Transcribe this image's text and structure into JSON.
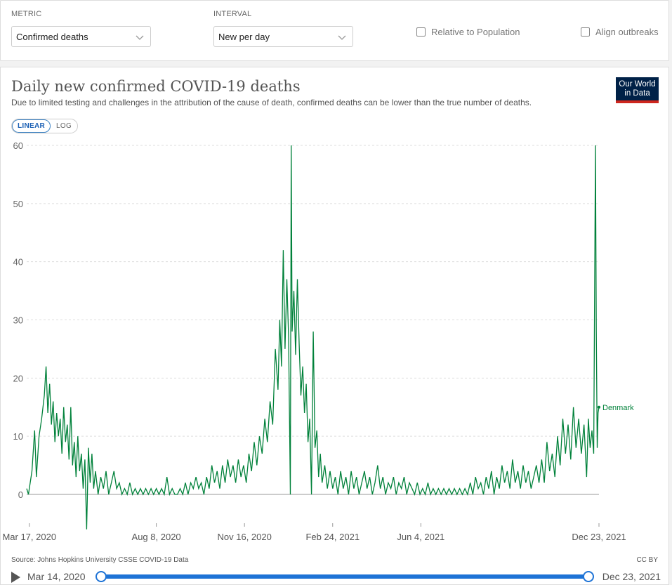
{
  "controls": {
    "metric_label": "METRIC",
    "metric_value": "Confirmed deaths",
    "interval_label": "INTERVAL",
    "interval_value": "New per day",
    "relative_label": "Relative to Population",
    "align_label": "Align outbreaks"
  },
  "header": {
    "title": "Daily new confirmed COVID-19 deaths",
    "subtitle": "Due to limited testing and challenges in the attribution of the cause of death, confirmed deaths can be lower than the true number of deaths.",
    "logo_line1": "Our World",
    "logo_line2": "in Data"
  },
  "scale": {
    "linear": "LINEAR",
    "log": "LOG",
    "active": "linear"
  },
  "footer": {
    "source": "Source: Johns Hopkins University CSSE COVID-19 Data",
    "license": "CC BY"
  },
  "timeline": {
    "start": "Mar 14, 2020",
    "end": "Dec 23, 2021"
  },
  "colors": {
    "series": "#00813a",
    "accent": "#1e73d6",
    "logo_bg": "#002147",
    "logo_bar": "#ce261e"
  },
  "chart_data": {
    "type": "line",
    "title": "Daily new confirmed COVID-19 deaths",
    "ylim": [
      0,
      60
    ],
    "yticks": [
      0,
      10,
      20,
      30,
      40,
      50,
      60
    ],
    "x_range": [
      "2020-03-14",
      "2021-12-23"
    ],
    "x_ticks": [
      {
        "date": "2020-03-17",
        "label": "Mar 17, 2020"
      },
      {
        "date": "2020-08-08",
        "label": "Aug 8, 2020"
      },
      {
        "date": "2020-11-16",
        "label": "Nov 16, 2020"
      },
      {
        "date": "2021-02-24",
        "label": "Feb 24, 2021"
      },
      {
        "date": "2021-06-04",
        "label": "Jun 4, 2021"
      },
      {
        "date": "2021-12-23",
        "label": "Dec 23, 2021"
      }
    ],
    "grid": true,
    "series": [
      {
        "name": "Denmark",
        "color": "#00813a",
        "points": [
          [
            "2020-03-14",
            1
          ],
          [
            "2020-03-16",
            0
          ],
          [
            "2020-03-20",
            4
          ],
          [
            "2020-03-23",
            11
          ],
          [
            "2020-03-25",
            3
          ],
          [
            "2020-03-28",
            10
          ],
          [
            "2020-03-31",
            13
          ],
          [
            "2020-04-03",
            17
          ],
          [
            "2020-04-05",
            22
          ],
          [
            "2020-04-07",
            14
          ],
          [
            "2020-04-09",
            19
          ],
          [
            "2020-04-11",
            12
          ],
          [
            "2020-04-13",
            16
          ],
          [
            "2020-04-15",
            9
          ],
          [
            "2020-04-17",
            14
          ],
          [
            "2020-04-19",
            10
          ],
          [
            "2020-04-21",
            13
          ],
          [
            "2020-04-23",
            7
          ],
          [
            "2020-04-25",
            15
          ],
          [
            "2020-04-27",
            9
          ],
          [
            "2020-04-29",
            12
          ],
          [
            "2020-05-01",
            6
          ],
          [
            "2020-05-03",
            15
          ],
          [
            "2020-05-05",
            5
          ],
          [
            "2020-05-07",
            9
          ],
          [
            "2020-05-09",
            3
          ],
          [
            "2020-05-11",
            10
          ],
          [
            "2020-05-13",
            4
          ],
          [
            "2020-05-15",
            7
          ],
          [
            "2020-05-17",
            1
          ],
          [
            "2020-05-19",
            6
          ],
          [
            "2020-05-21",
            -6
          ],
          [
            "2020-05-23",
            8
          ],
          [
            "2020-05-25",
            2
          ],
          [
            "2020-05-27",
            7
          ],
          [
            "2020-05-29",
            1
          ],
          [
            "2020-05-31",
            4
          ],
          [
            "2020-06-03",
            0
          ],
          [
            "2020-06-06",
            3
          ],
          [
            "2020-06-09",
            1
          ],
          [
            "2020-06-12",
            4
          ],
          [
            "2020-06-15",
            0
          ],
          [
            "2020-06-18",
            2
          ],
          [
            "2020-06-21",
            4
          ],
          [
            "2020-06-24",
            1
          ],
          [
            "2020-06-27",
            2
          ],
          [
            "2020-06-30",
            0
          ],
          [
            "2020-07-03",
            1
          ],
          [
            "2020-07-06",
            0
          ],
          [
            "2020-07-09",
            2
          ],
          [
            "2020-07-12",
            0
          ],
          [
            "2020-07-15",
            1
          ],
          [
            "2020-07-18",
            0
          ],
          [
            "2020-07-21",
            1
          ],
          [
            "2020-07-24",
            0
          ],
          [
            "2020-07-27",
            1
          ],
          [
            "2020-07-30",
            0
          ],
          [
            "2020-08-02",
            1
          ],
          [
            "2020-08-05",
            0
          ],
          [
            "2020-08-08",
            1
          ],
          [
            "2020-08-11",
            0
          ],
          [
            "2020-08-14",
            1
          ],
          [
            "2020-08-17",
            0
          ],
          [
            "2020-08-20",
            3
          ],
          [
            "2020-08-23",
            0
          ],
          [
            "2020-08-26",
            1
          ],
          [
            "2020-08-29",
            0
          ],
          [
            "2020-09-01",
            0
          ],
          [
            "2020-09-04",
            1
          ],
          [
            "2020-09-07",
            0
          ],
          [
            "2020-09-10",
            2
          ],
          [
            "2020-09-13",
            0
          ],
          [
            "2020-09-16",
            2
          ],
          [
            "2020-09-19",
            1
          ],
          [
            "2020-09-22",
            3
          ],
          [
            "2020-09-25",
            1
          ],
          [
            "2020-09-28",
            2
          ],
          [
            "2020-10-01",
            0
          ],
          [
            "2020-10-04",
            3
          ],
          [
            "2020-10-07",
            1
          ],
          [
            "2020-10-10",
            5
          ],
          [
            "2020-10-13",
            2
          ],
          [
            "2020-10-16",
            4
          ],
          [
            "2020-10-19",
            1
          ],
          [
            "2020-10-22",
            5
          ],
          [
            "2020-10-25",
            2
          ],
          [
            "2020-10-28",
            6
          ],
          [
            "2020-10-31",
            3
          ],
          [
            "2020-11-03",
            5
          ],
          [
            "2020-11-06",
            2
          ],
          [
            "2020-11-09",
            6
          ],
          [
            "2020-11-12",
            3
          ],
          [
            "2020-11-15",
            5
          ],
          [
            "2020-11-18",
            2
          ],
          [
            "2020-11-21",
            7
          ],
          [
            "2020-11-24",
            4
          ],
          [
            "2020-11-27",
            9
          ],
          [
            "2020-11-30",
            5
          ],
          [
            "2020-12-03",
            10
          ],
          [
            "2020-12-06",
            7
          ],
          [
            "2020-12-09",
            13
          ],
          [
            "2020-12-12",
            9
          ],
          [
            "2020-12-15",
            16
          ],
          [
            "2020-12-18",
            12
          ],
          [
            "2020-12-21",
            25
          ],
          [
            "2020-12-24",
            18
          ],
          [
            "2020-12-26",
            30
          ],
          [
            "2020-12-28",
            22
          ],
          [
            "2020-12-30",
            42
          ],
          [
            "2021-01-01",
            25
          ],
          [
            "2021-01-03",
            37
          ],
          [
            "2021-01-05",
            27
          ],
          [
            "2021-01-07",
            0
          ],
          [
            "2021-01-08",
            60
          ],
          [
            "2021-01-09",
            28
          ],
          [
            "2021-01-11",
            35
          ],
          [
            "2021-01-13",
            24
          ],
          [
            "2021-01-15",
            37
          ],
          [
            "2021-01-17",
            26
          ],
          [
            "2021-01-19",
            17
          ],
          [
            "2021-01-21",
            22
          ],
          [
            "2021-01-23",
            14
          ],
          [
            "2021-01-25",
            19
          ],
          [
            "2021-01-27",
            9
          ],
          [
            "2021-01-29",
            13
          ],
          [
            "2021-01-31",
            0
          ],
          [
            "2021-02-02",
            28
          ],
          [
            "2021-02-04",
            8
          ],
          [
            "2021-02-06",
            11
          ],
          [
            "2021-02-08",
            3
          ],
          [
            "2021-02-10",
            7
          ],
          [
            "2021-02-12",
            2
          ],
          [
            "2021-02-15",
            5
          ],
          [
            "2021-02-18",
            1
          ],
          [
            "2021-02-21",
            4
          ],
          [
            "2021-02-24",
            1
          ],
          [
            "2021-02-27",
            3
          ],
          [
            "2021-03-02",
            0
          ],
          [
            "2021-03-05",
            4
          ],
          [
            "2021-03-08",
            1
          ],
          [
            "2021-03-11",
            3
          ],
          [
            "2021-03-14",
            0
          ],
          [
            "2021-03-17",
            4
          ],
          [
            "2021-03-20",
            1
          ],
          [
            "2021-03-23",
            3
          ],
          [
            "2021-03-26",
            0
          ],
          [
            "2021-03-29",
            2
          ],
          [
            "2021-04-01",
            4
          ],
          [
            "2021-04-04",
            1
          ],
          [
            "2021-04-07",
            3
          ],
          [
            "2021-04-10",
            0
          ],
          [
            "2021-04-13",
            2
          ],
          [
            "2021-04-16",
            5
          ],
          [
            "2021-04-19",
            1
          ],
          [
            "2021-04-22",
            3
          ],
          [
            "2021-04-25",
            0
          ],
          [
            "2021-04-28",
            2
          ],
          [
            "2021-05-01",
            1
          ],
          [
            "2021-05-04",
            3
          ],
          [
            "2021-05-07",
            0
          ],
          [
            "2021-05-10",
            2
          ],
          [
            "2021-05-13",
            1
          ],
          [
            "2021-05-16",
            3
          ],
          [
            "2021-05-19",
            0
          ],
          [
            "2021-05-22",
            2
          ],
          [
            "2021-05-25",
            1
          ],
          [
            "2021-05-28",
            0
          ],
          [
            "2021-05-31",
            2
          ],
          [
            "2021-06-03",
            0
          ],
          [
            "2021-06-06",
            1
          ],
          [
            "2021-06-09",
            0
          ],
          [
            "2021-06-12",
            2
          ],
          [
            "2021-06-15",
            0
          ],
          [
            "2021-06-18",
            1
          ],
          [
            "2021-06-21",
            0
          ],
          [
            "2021-06-24",
            1
          ],
          [
            "2021-06-27",
            0
          ],
          [
            "2021-06-30",
            1
          ],
          [
            "2021-07-03",
            0
          ],
          [
            "2021-07-06",
            1
          ],
          [
            "2021-07-09",
            0
          ],
          [
            "2021-07-12",
            1
          ],
          [
            "2021-07-15",
            0
          ],
          [
            "2021-07-18",
            1
          ],
          [
            "2021-07-21",
            0
          ],
          [
            "2021-07-24",
            1
          ],
          [
            "2021-07-27",
            0
          ],
          [
            "2021-07-30",
            2
          ],
          [
            "2021-08-02",
            0
          ],
          [
            "2021-08-05",
            3
          ],
          [
            "2021-08-08",
            1
          ],
          [
            "2021-08-11",
            2
          ],
          [
            "2021-08-14",
            0
          ],
          [
            "2021-08-17",
            3
          ],
          [
            "2021-08-20",
            1
          ],
          [
            "2021-08-23",
            4
          ],
          [
            "2021-08-26",
            0
          ],
          [
            "2021-08-29",
            3
          ],
          [
            "2021-09-01",
            1
          ],
          [
            "2021-09-04",
            5
          ],
          [
            "2021-09-07",
            2
          ],
          [
            "2021-09-10",
            4
          ],
          [
            "2021-09-13",
            1
          ],
          [
            "2021-09-16",
            6
          ],
          [
            "2021-09-19",
            2
          ],
          [
            "2021-09-22",
            4
          ],
          [
            "2021-09-25",
            1
          ],
          [
            "2021-09-28",
            5
          ],
          [
            "2021-10-01",
            2
          ],
          [
            "2021-10-04",
            4
          ],
          [
            "2021-10-07",
            1
          ],
          [
            "2021-10-10",
            3
          ],
          [
            "2021-10-13",
            5
          ],
          [
            "2021-10-16",
            2
          ],
          [
            "2021-10-19",
            6
          ],
          [
            "2021-10-22",
            2
          ],
          [
            "2021-10-25",
            9
          ],
          [
            "2021-10-28",
            4
          ],
          [
            "2021-10-31",
            7
          ],
          [
            "2021-11-03",
            3
          ],
          [
            "2021-11-06",
            10
          ],
          [
            "2021-11-09",
            5
          ],
          [
            "2021-11-12",
            13
          ],
          [
            "2021-11-15",
            7
          ],
          [
            "2021-11-18",
            12
          ],
          [
            "2021-11-21",
            6
          ],
          [
            "2021-11-24",
            15
          ],
          [
            "2021-11-27",
            8
          ],
          [
            "2021-11-30",
            13
          ],
          [
            "2021-12-03",
            7
          ],
          [
            "2021-12-06",
            12
          ],
          [
            "2021-12-09",
            3
          ],
          [
            "2021-12-11",
            13
          ],
          [
            "2021-12-13",
            8
          ],
          [
            "2021-12-15",
            11
          ],
          [
            "2021-12-17",
            7
          ],
          [
            "2021-12-19",
            60
          ],
          [
            "2021-12-20",
            28
          ],
          [
            "2021-12-21",
            8
          ],
          [
            "2021-12-22",
            14
          ],
          [
            "2021-12-23",
            15
          ]
        ]
      }
    ]
  }
}
